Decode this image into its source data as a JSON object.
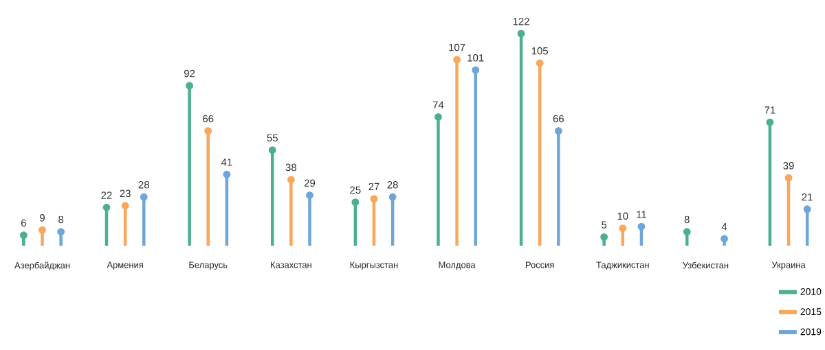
{
  "chart_data": {
    "type": "lollipop",
    "categories": [
      "Азербайджан",
      "Армения",
      "Беларусь",
      "Казахстан",
      "Кыргызстан",
      "Молдова",
      "Россия",
      "Таджикистан",
      "Узбекистан",
      "Украина"
    ],
    "series": [
      {
        "name": "2010",
        "color": "#4caf8e",
        "values": [
          6,
          22,
          92,
          55,
          25,
          74,
          122,
          5,
          8,
          71
        ]
      },
      {
        "name": "2015",
        "color": "#f9a75a",
        "values": [
          9,
          23,
          66,
          38,
          27,
          107,
          105,
          10,
          null,
          39
        ]
      },
      {
        "name": "2019",
        "color": "#6fa6d8",
        "values": [
          8,
          28,
          41,
          29,
          28,
          101,
          66,
          11,
          4,
          21
        ]
      }
    ],
    "data_labels": true,
    "marker": "circle",
    "legend": "bottom right"
  }
}
